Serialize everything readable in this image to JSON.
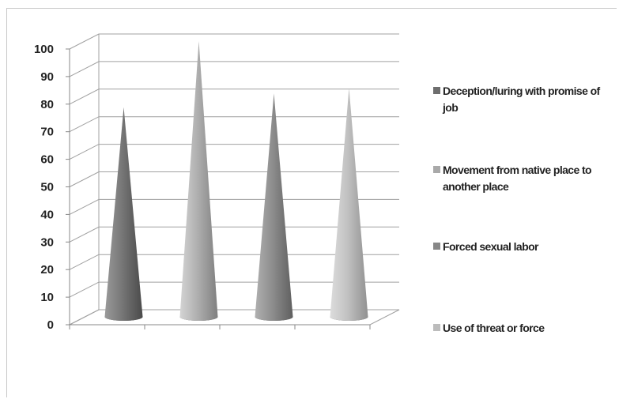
{
  "chart_data": {
    "type": "bar",
    "style": "3d-cone",
    "categories": [
      "Deception/luring with promise of job",
      "Movement from native place to another place",
      "Forced sexual labor",
      "Use of threat or force"
    ],
    "values": [
      76,
      100,
      81,
      83
    ],
    "yticks": [
      "0",
      "10",
      "20",
      "30",
      "40",
      "50",
      "60",
      "70",
      "80",
      "90",
      "100"
    ],
    "ylim": [
      0,
      100
    ],
    "grid": true,
    "legend_position": "right",
    "colors": [
      "#6e6e6e",
      "#a9a9a9",
      "#878787",
      "#bcbcbc"
    ],
    "legend": [
      {
        "label": "Deception/luring with promise of job",
        "color": "#6e6e6e"
      },
      {
        "label": "Movement from native place to another place",
        "color": "#a9a9a9"
      },
      {
        "label": "Forced sexual labor",
        "color": "#878787"
      },
      {
        "label": "Use of threat or force",
        "color": "#bcbcbc"
      }
    ]
  }
}
